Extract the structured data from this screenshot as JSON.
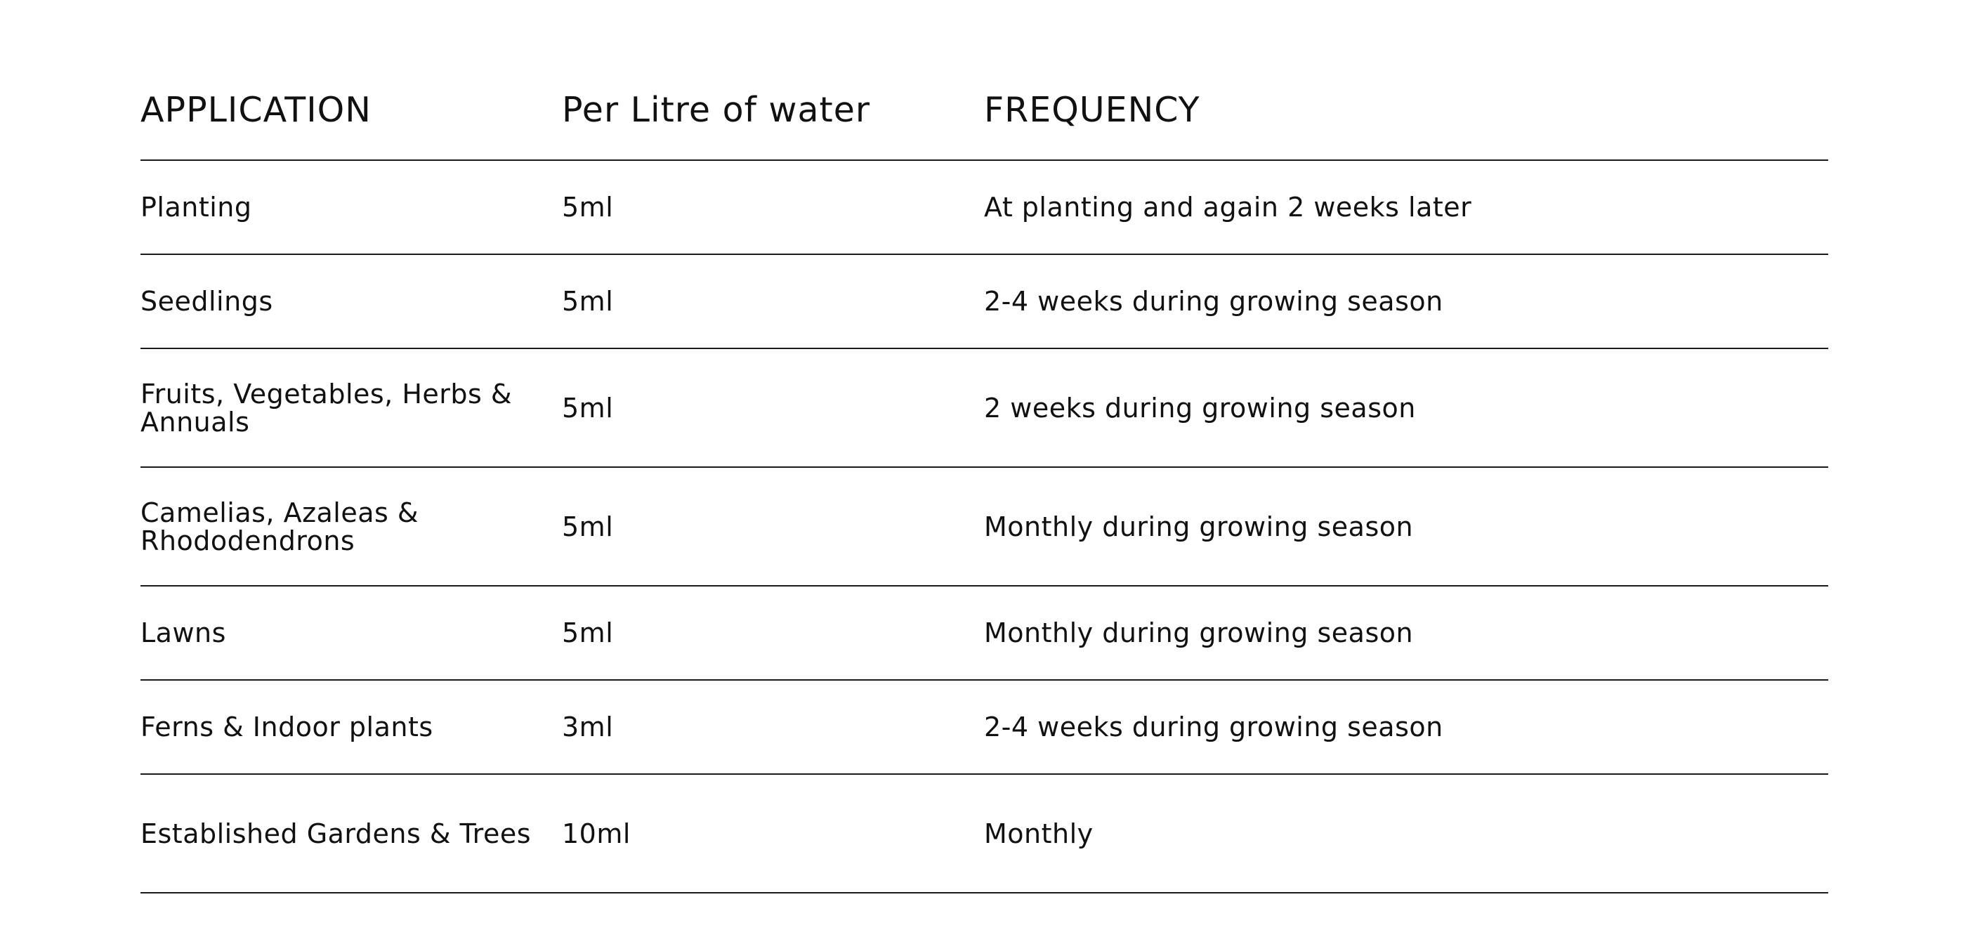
{
  "table": {
    "headers": {
      "application": "APPLICATION",
      "per_litre": "Per Litre of water",
      "frequency": "FREQUENCY"
    },
    "rows": [
      {
        "application": "Planting",
        "per_litre": "5ml",
        "frequency": "At planting and again 2 weeks later"
      },
      {
        "application": "Seedlings",
        "per_litre": "5ml",
        "frequency": "2-4 weeks during growing season"
      },
      {
        "application": "Fruits, Vegetables, Herbs & Annuals",
        "per_litre": "5ml",
        "frequency": "2 weeks during growing season"
      },
      {
        "application": "Camelias, Azaleas & Rhododendrons",
        "per_litre": "5ml",
        "frequency": "Monthly during growing season"
      },
      {
        "application": "Lawns",
        "per_litre": "5ml",
        "frequency": "Monthly during growing season"
      },
      {
        "application": "Ferns & Indoor plants",
        "per_litre": "3ml",
        "frequency": "2-4 weeks during growing season"
      },
      {
        "application": "Established Gardens & Trees",
        "per_litre": "10ml",
        "frequency": "Monthly"
      }
    ]
  }
}
